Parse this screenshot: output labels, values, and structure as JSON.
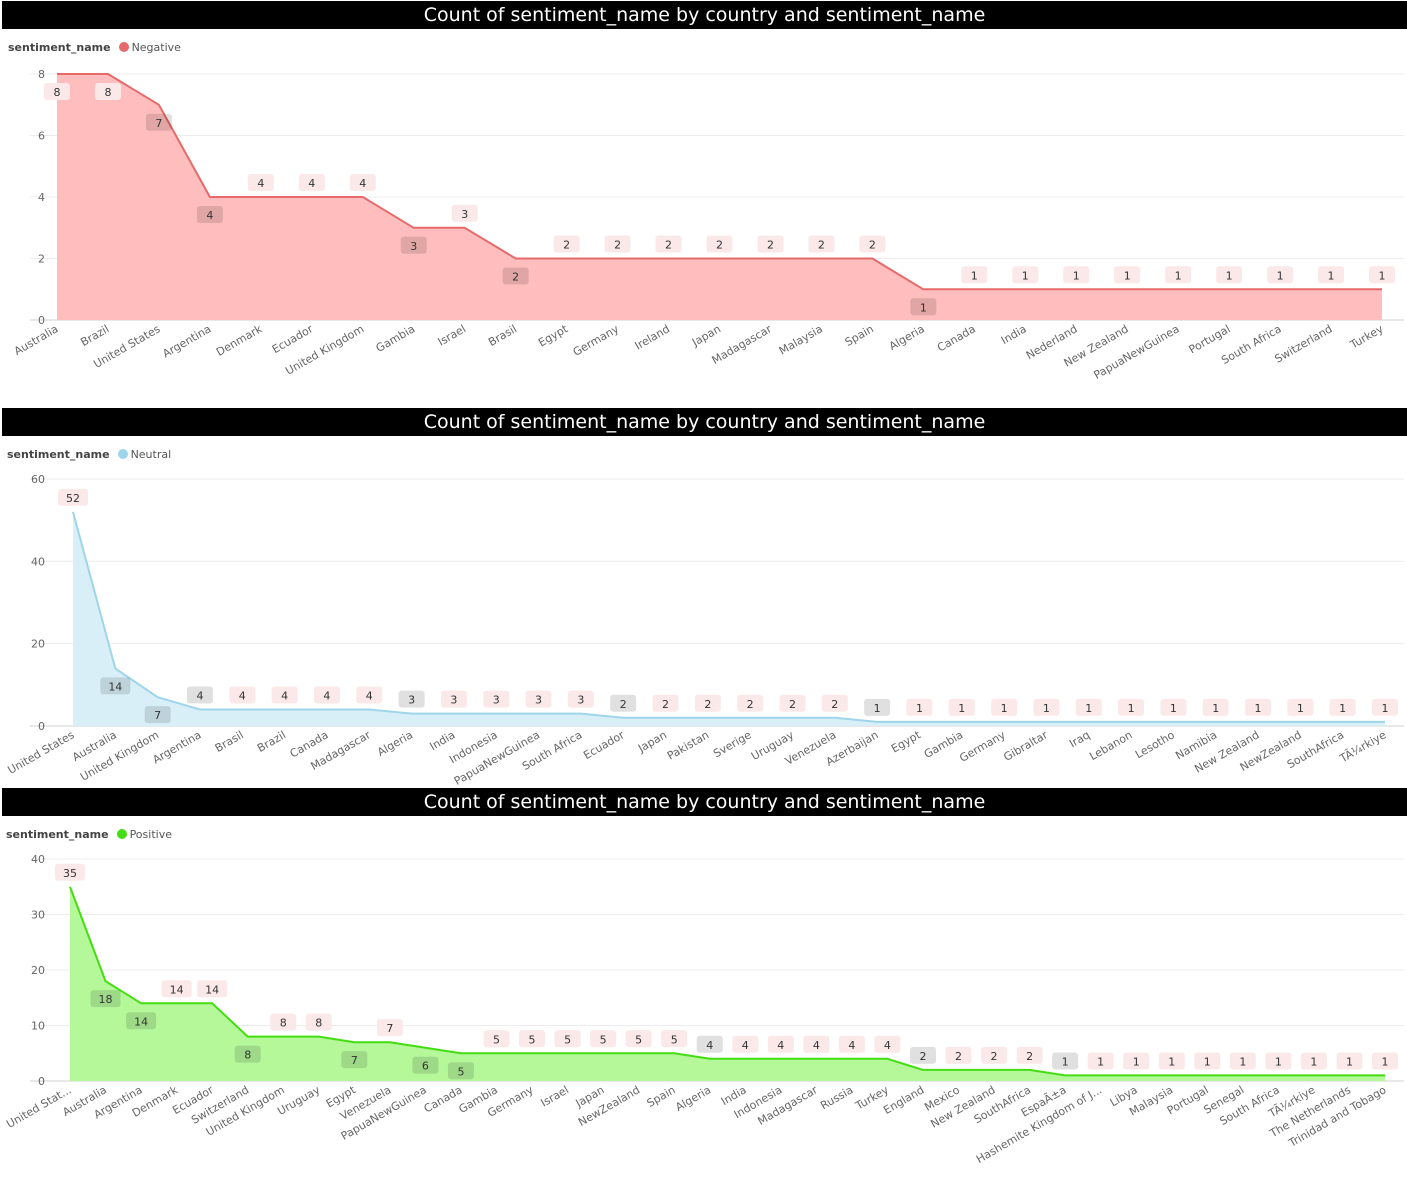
{
  "chart_data": [
    {
      "type": "area",
      "title": "Count of sentiment_name by country and sentiment_name",
      "legend_title": "sentiment_name",
      "legend_placement": "top-left",
      "series_name": "Negative",
      "color": "#e66a6a",
      "fill": "#ffbdbd",
      "grid": true,
      "ylim": [
        0,
        8
      ],
      "yticks": [
        0,
        2,
        4,
        6,
        8
      ],
      "categories": [
        "Australia",
        "Brazil",
        "United States",
        "Argentina",
        "Denmark",
        "Ecuador",
        "United Kingdom",
        "Gambia",
        "Israel",
        "Brasil",
        "Egypt",
        "Germany",
        "Ireland",
        "Japan",
        "Madagascar",
        "Malaysia",
        "Spain",
        "Algeria",
        "Canada",
        "India",
        "Nederland",
        "New Zealand",
        "PapuaNewGuinea",
        "Portugal",
        "South Africa",
        "Switzerland",
        "Turkey"
      ],
      "values": [
        8,
        8,
        7,
        4,
        4,
        4,
        4,
        3,
        3,
        2,
        2,
        2,
        2,
        2,
        2,
        2,
        2,
        1,
        1,
        1,
        1,
        1,
        1,
        1,
        1,
        1,
        1
      ]
    },
    {
      "type": "area",
      "title": "Count of sentiment_name by country and sentiment_name",
      "legend_title": "sentiment_name",
      "legend_placement": "top-left",
      "series_name": "Neutral",
      "color": "#9fd5ea",
      "fill": "#d9eff8",
      "grid": true,
      "ylim": [
        0,
        60
      ],
      "yticks": [
        0,
        20,
        40,
        60
      ],
      "categories": [
        "United States",
        "Australia",
        "United Kingdom",
        "Argentina",
        "Brasil",
        "Brazil",
        "Canada",
        "Madagascar",
        "Algeria",
        "India",
        "Indonesia",
        "PapuaNewGuinea",
        "South Africa",
        "Ecuador",
        "Japan",
        "Pakistan",
        "Sverige",
        "Uruguay",
        "Venezuela",
        "Azerbaijan",
        "Egypt",
        "Gambia",
        "Germany",
        "Gibraltar",
        "Iraq",
        "Lebanon",
        "Lesotho",
        "Namibia",
        "New Zealand",
        "NewZealand",
        "SouthAfrica",
        "TÃ¼rkiye"
      ],
      "values": [
        52,
        14,
        7,
        4,
        4,
        4,
        4,
        4,
        3,
        3,
        3,
        3,
        3,
        2,
        2,
        2,
        2,
        2,
        2,
        1,
        1,
        1,
        1,
        1,
        1,
        1,
        1,
        1,
        1,
        1,
        1,
        1
      ]
    },
    {
      "type": "area",
      "title": "Count of sentiment_name by country and sentiment_name",
      "legend_title": "sentiment_name",
      "legend_placement": "top-left",
      "series_name": "Positive",
      "color": "#44dd11",
      "fill": "#b4f89a",
      "grid": true,
      "ylim": [
        0,
        40
      ],
      "yticks": [
        0,
        10,
        20,
        30,
        40
      ],
      "categories": [
        "United Stat...",
        "Australia",
        "Argentina",
        "Denmark",
        "Ecuador",
        "Switzerland",
        "United Kingdom",
        "Uruguay",
        "Egypt",
        "Venezuela",
        "PapuaNewGuinea",
        "Canada",
        "Gambia",
        "Germany",
        "Israel",
        "Japan",
        "NewZealand",
        "Spain",
        "Algeria",
        "India",
        "Indonesia",
        "Madagascar",
        "Russia",
        "Turkey",
        "England",
        "Mexico",
        "New Zealand",
        "SouthAfrica",
        "EspaÃ±a",
        "Hashemite Kingdom of J...",
        "Libya",
        "Malaysia",
        "Portugal",
        "Senegal",
        "South Africa",
        "TÃ¼rkiye",
        "The Netherlands",
        "Trinidad and Tobago"
      ],
      "values": [
        35,
        18,
        14,
        14,
        14,
        8,
        8,
        8,
        7,
        7,
        6,
        5,
        5,
        5,
        5,
        5,
        5,
        5,
        4,
        4,
        4,
        4,
        4,
        4,
        2,
        2,
        2,
        2,
        1,
        1,
        1,
        1,
        1,
        1,
        1,
        1,
        1,
        1
      ]
    }
  ]
}
